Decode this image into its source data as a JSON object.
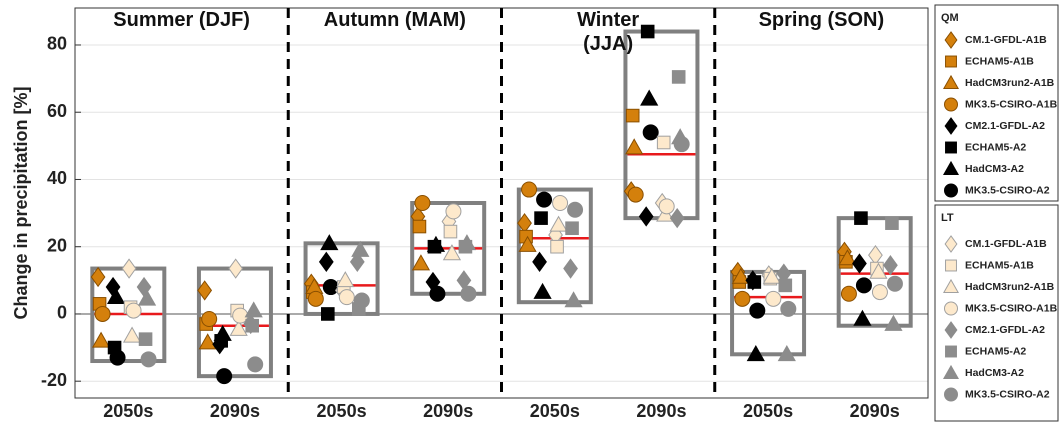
{
  "chart_data": {
    "type": "scatter",
    "ylabel": "Change in precipitation [%]",
    "seasons": [
      "Summer (DJF)",
      "Autumn (MAM)",
      "Winter (JJA)",
      "Spring (SON)"
    ],
    "categories": [
      "2050s",
      "2090s",
      "2050s",
      "2090s",
      "2050s",
      "2090s",
      "2050s",
      "2090s"
    ],
    "ylim": [
      -25,
      91
    ],
    "yticks": [
      -20,
      0,
      20,
      40,
      60,
      80
    ],
    "grid": true,
    "ranges": [
      {
        "low": -14,
        "high": 13.5
      },
      {
        "low": -18.5,
        "high": 13.5
      },
      {
        "low": 0,
        "high": 21
      },
      {
        "low": 6,
        "high": 33
      },
      {
        "low": 3.5,
        "high": 37
      },
      {
        "low": 28.5,
        "high": 84
      },
      {
        "low": -12,
        "high": 12.5
      },
      {
        "low": -3.5,
        "high": 28.5
      }
    ],
    "range_color": "#808080",
    "means": [
      0,
      -3.5,
      8.5,
      19.5,
      22.5,
      47.5,
      5,
      12
    ],
    "mean_color": "#e8191c",
    "series_groups": [
      {
        "title": "QM",
        "series": [
          {
            "name": "CM.1-GFDL-A1B",
            "marker": "diamond",
            "color": "#d4800c",
            "edge": "#8a4f00",
            "values": [
              11,
              7,
              9,
              29,
              27,
              36.5,
              12.5,
              18.5
            ]
          },
          {
            "name": "ECHAM5-A1B",
            "marker": "square",
            "color": "#d4800c",
            "edge": "#8a4f00",
            "values": [
              3,
              -3,
              6.5,
              26,
              23,
              59,
              9.5,
              15.5
            ]
          },
          {
            "name": "HadCM3run2-A1B",
            "marker": "triangle",
            "color": "#d4800c",
            "edge": "#8a4f00",
            "values": [
              -8,
              -8.5,
              8,
              15,
              20.5,
              49.5,
              11,
              16.5
            ]
          },
          {
            "name": "MK3.5-CSIRO-A1B",
            "marker": "circle",
            "color": "#d4800c",
            "edge": "#8a4f00",
            "values": [
              0,
              -1.5,
              4.5,
              33,
              37,
              35.5,
              4.5,
              6
            ]
          },
          {
            "name": "CM2.1-GFDL-A2",
            "marker": "diamond",
            "color": "#000000",
            "edge": "#000000",
            "values": [
              8,
              -9,
              15.5,
              9.5,
              15.5,
              29,
              10,
              15
            ]
          },
          {
            "name": "ECHAM5-A2",
            "marker": "square",
            "color": "#000000",
            "edge": "#000000",
            "values": [
              -10,
              -8,
              0,
              20,
              28.5,
              84,
              9.5,
              28.5
            ]
          },
          {
            "name": "HadCM3-A2",
            "marker": "triangle",
            "color": "#000000",
            "edge": "#000000",
            "values": [
              5,
              -6,
              21,
              20.5,
              6.5,
              64,
              -12,
              -1.5
            ]
          },
          {
            "name": "MK3.5-CSIRO-A2",
            "marker": "circle",
            "color": "#000000",
            "edge": "#000000",
            "values": [
              -13,
              -18.5,
              8,
              6,
              34,
              54,
              1,
              8.5
            ]
          }
        ]
      },
      {
        "title": "LT",
        "series": [
          {
            "name": "CM.1-GFDL-A1B",
            "marker": "diamond",
            "color": "#fde9cc",
            "edge": "#a0a0a0",
            "values": [
              13.5,
              13.5,
              7,
              27.5,
              23.5,
              33,
              11.5,
              17.5
            ]
          },
          {
            "name": "ECHAM5-A1B",
            "marker": "square",
            "color": "#fde9cc",
            "edge": "#a0a0a0",
            "values": [
              2,
              1,
              8,
              24.5,
              20,
              51,
              10.5,
              13.5
            ]
          },
          {
            "name": "HadCM3run2-A1B",
            "marker": "triangle",
            "color": "#fde9cc",
            "edge": "#a0a0a0",
            "values": [
              -6.5,
              -4.5,
              10,
              18,
              26.5,
              29.5,
              11,
              12.5
            ]
          },
          {
            "name": "MK3.5-CSIRO-A1B",
            "marker": "circle",
            "color": "#fde9cc",
            "edge": "#a0a0a0",
            "values": [
              1,
              -0.5,
              5,
              30.5,
              33,
              32,
              4.5,
              6.5
            ]
          },
          {
            "name": "CM2.1-GFDL-A2",
            "marker": "diamond",
            "color": "#8c8c8c",
            "edge": "#8c8c8c",
            "values": [
              8,
              -3,
              15.5,
              10,
              13.5,
              28.5,
              12,
              14.5
            ]
          },
          {
            "name": "ECHAM5-A2",
            "marker": "square",
            "color": "#8c8c8c",
            "edge": "#8c8c8c",
            "values": [
              -7.5,
              -3.5,
              1.5,
              20,
              25.5,
              70.5,
              8.5,
              27
            ]
          },
          {
            "name": "HadCM3-A2",
            "marker": "triangle",
            "color": "#8c8c8c",
            "edge": "#8c8c8c",
            "values": [
              4.5,
              1,
              19,
              21,
              4,
              52.5,
              -12,
              -3
            ]
          },
          {
            "name": "MK3.5-CSIRO-A2",
            "marker": "circle",
            "color": "#8c8c8c",
            "edge": "#8c8c8c",
            "values": [
              -13.5,
              -15,
              4,
              6,
              31,
              50.5,
              1.5,
              9
            ]
          }
        ]
      }
    ]
  }
}
